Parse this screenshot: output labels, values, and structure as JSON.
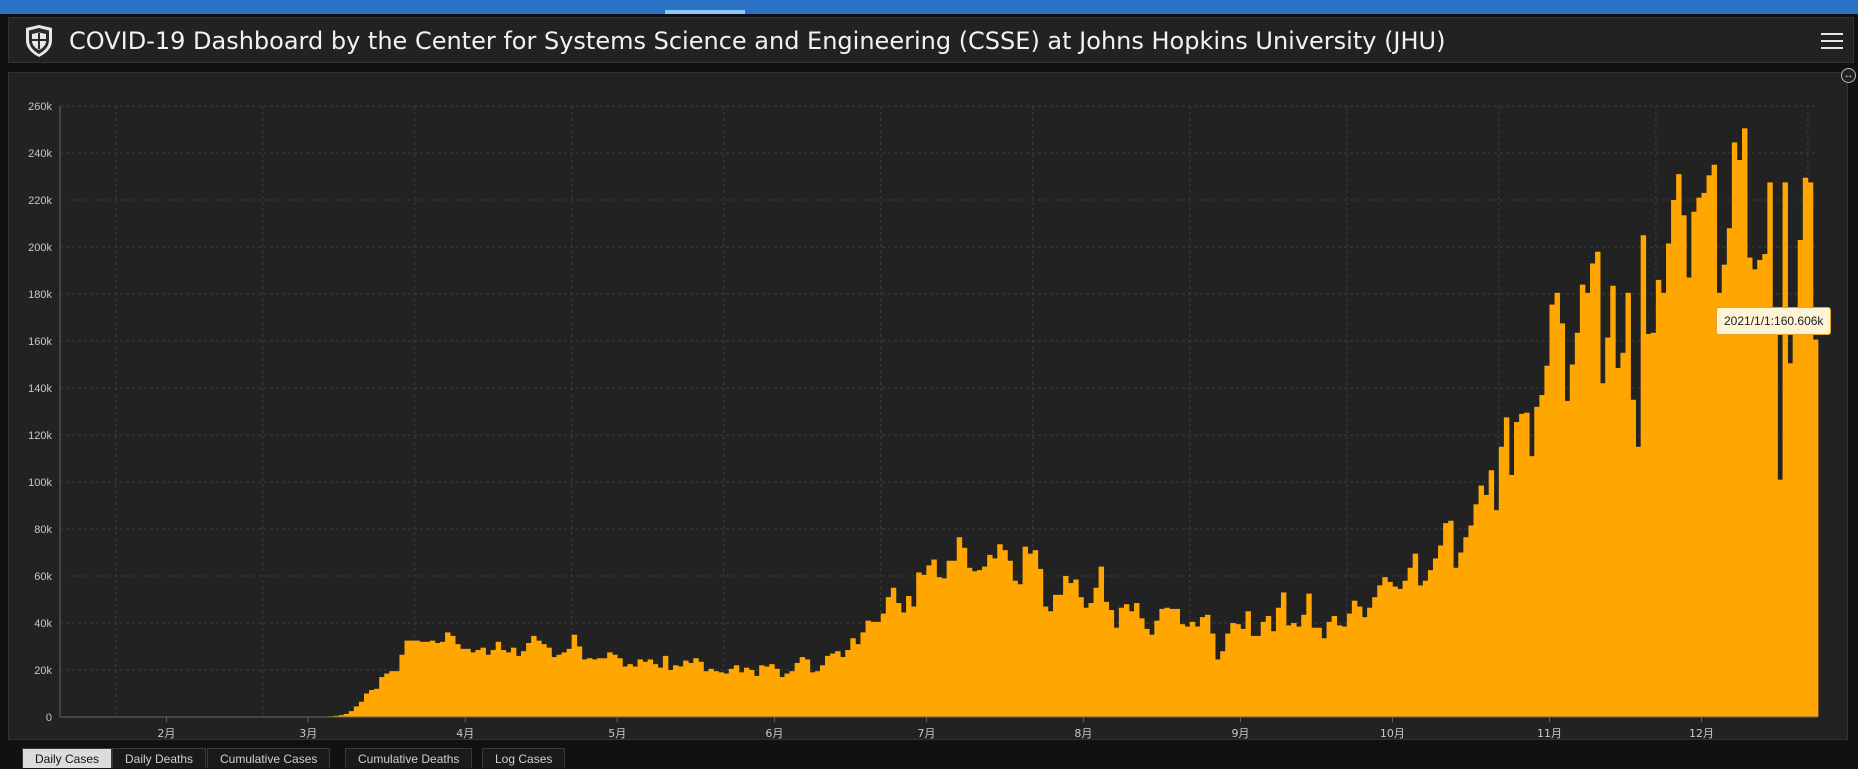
{
  "header": {
    "title": "COVID-19 Dashboard by the Center for Systems Science and Engineering (CSSE) at Johns Hopkins University (JHU)"
  },
  "icons": {
    "logo": "jhu-shield-icon",
    "menu": "hamburger-menu-icon",
    "expand": "expand-icon"
  },
  "colors": {
    "bar": "#ffa600",
    "background": "#222222",
    "grid": "#3c3c3c",
    "axis_text": "#c8c8c8"
  },
  "tooltip": {
    "text": "2021/1/1:160.606k"
  },
  "tabs": [
    "Daily Cases",
    "Daily Deaths",
    "Cumulative Cases",
    "Cumulative Deaths",
    "Log Cases"
  ],
  "active_tab": 0,
  "chart_data": {
    "type": "bar",
    "series": [
      {
        "values": [
          0,
          0,
          0,
          0,
          0,
          0,
          0,
          0,
          0,
          0,
          0,
          0,
          0,
          0,
          0,
          0,
          0,
          0,
          0,
          0,
          0,
          0,
          0,
          0,
          0,
          0,
          0,
          0,
          0,
          0,
          0,
          0,
          0,
          0,
          0,
          0,
          0,
          0,
          0,
          0,
          0,
          0,
          0,
          0,
          0,
          0,
          0,
          0,
          0,
          100,
          100,
          200,
          200,
          300,
          500,
          800,
          1300,
          2500,
          4500,
          6500,
          10000,
          11500,
          12000,
          17000,
          18500,
          19500,
          19500,
          26500,
          32500,
          32500,
          32500,
          32000,
          32000,
          32500,
          31500,
          32000,
          36000,
          34500,
          31000,
          29000,
          29000,
          27500,
          28500,
          29500,
          26500,
          28500,
          32000,
          28500,
          27500,
          29500,
          26000,
          28000,
          31500,
          34500,
          32500,
          31000,
          29500,
          25500,
          26500,
          27500,
          29000,
          35000,
          30000,
          24500,
          25000,
          24500,
          25000,
          25000,
          27500,
          26500,
          25000,
          21500,
          22500,
          21500,
          24500,
          23500,
          24500,
          22500,
          21000,
          26000,
          20000,
          22000,
          21500,
          24000,
          23000,
          25000,
          23500,
          19500,
          20500,
          19500,
          19000,
          18500,
          20500,
          22000,
          19000,
          21000,
          20000,
          17500,
          22000,
          21500,
          22500,
          20500,
          17000,
          18500,
          19500,
          23000,
          25500,
          24500,
          19000,
          19500,
          22000,
          26000,
          27000,
          28000,
          25500,
          28500,
          33500,
          31000,
          36000,
          41000,
          40500,
          40500,
          44000,
          51000,
          55000,
          48500,
          44500,
          51500,
          47000,
          61500,
          60500,
          64500,
          67000,
          59500,
          59000,
          66500,
          66500,
          76500,
          72000,
          63500,
          62000,
          62500,
          64000,
          69000,
          67500,
          73500,
          71000,
          66500,
          58000,
          56500,
          72500,
          69500,
          71000,
          63000,
          47000,
          45000,
          52000,
          52000,
          60000,
          57000,
          58500,
          51000,
          46500,
          48500,
          55000,
          64000,
          49000,
          45500,
          38000,
          46500,
          48000,
          45000,
          48500,
          42000,
          37500,
          35000,
          41000,
          46000,
          46500,
          46000,
          46000,
          39500,
          38500,
          40500,
          38500,
          42500,
          43500,
          35500,
          24500,
          28000,
          35500,
          40000,
          39500,
          37500,
          45000,
          34500,
          34500,
          40500,
          43000,
          36500,
          46500,
          53000,
          39000,
          40000,
          38500,
          43500,
          52500,
          38000,
          38000,
          33500,
          40500,
          43000,
          39000,
          38500,
          44000,
          49500,
          47000,
          42500,
          46500,
          51000,
          56000,
          59500,
          57500,
          55500,
          54500,
          58000,
          63500,
          69500,
          56000,
          58000,
          62500,
          67500,
          73000,
          82500,
          83500,
          63500,
          70000,
          76500,
          81500,
          90500,
          98500,
          94500,
          105000,
          88000,
          115000,
          127500,
          103000,
          125500,
          129000,
          129500,
          111000,
          132000,
          137000,
          149500,
          175500,
          180500,
          167500,
          134500,
          150000,
          163500,
          184000,
          180500,
          193000,
          198000,
          142000,
          161500,
          183500,
          148500,
          155000,
          180500,
          135000,
          115000,
          205000,
          163000,
          163500,
          186000,
          180500,
          201500,
          220000,
          231000,
          213500,
          187000,
          215000,
          221000,
          223000,
          230500,
          235000,
          180500,
          192500,
          208000,
          244500,
          237000,
          250500,
          195500,
          190500,
          194500,
          197000,
          227500,
          173500,
          101000,
          227500,
          150500,
          168000,
          203000,
          229500,
          227500,
          160606
        ]
      }
    ],
    "x_ticks": [
      "2月",
      "3月",
      "4月",
      "5月",
      "6月",
      "7月",
      "8月",
      "9月",
      "10月",
      "11月",
      "12月"
    ],
    "y_ticks": [
      "0",
      "20k",
      "40k",
      "60k",
      "80k",
      "100k",
      "120k",
      "140k",
      "160k",
      "180k",
      "200k",
      "220k",
      "240k",
      "260k"
    ],
    "ylim": [
      0,
      260000
    ],
    "grid": true
  }
}
